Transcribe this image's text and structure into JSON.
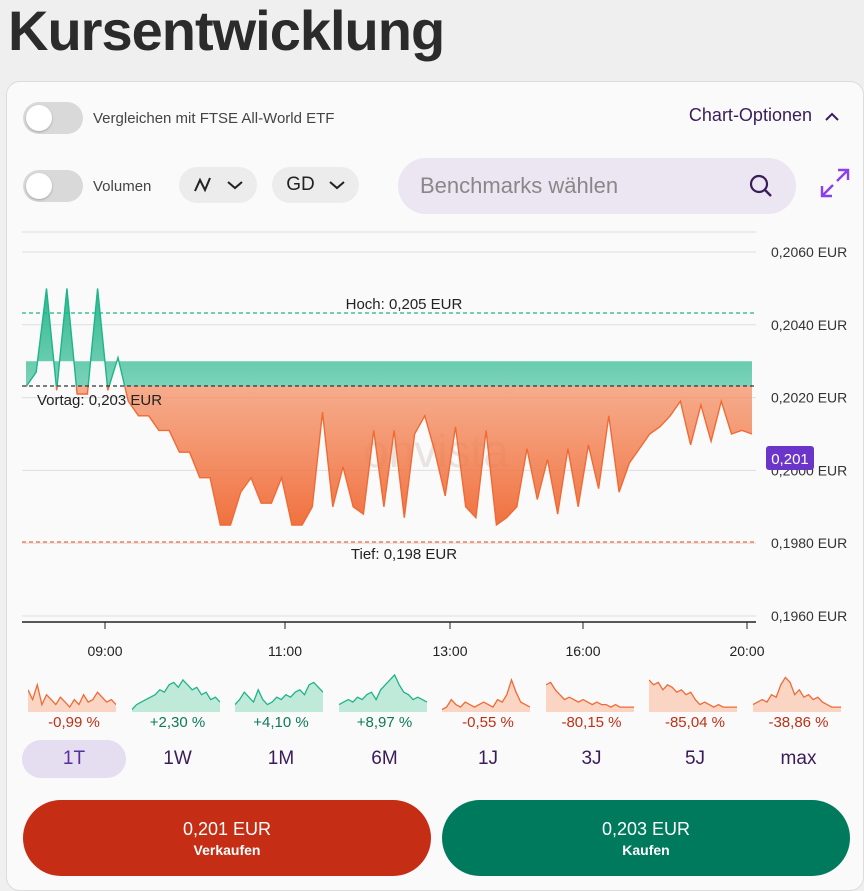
{
  "page": {
    "title": "Kursentwicklung"
  },
  "controls": {
    "compare_label": "Vergleichen mit FTSE All-World ETF",
    "chart_options_label": "Chart-Optionen",
    "volume_label": "Volumen",
    "average_label": "GD",
    "benchmark_placeholder": "Benchmarks wählen"
  },
  "chart": {
    "watermark": "onvista",
    "high_label": "Hoch: 0,205 EUR",
    "low_label": "Tief: 0,198 EUR",
    "prev_label": "Vortag: 0,203 EUR",
    "current_badge": "0,201",
    "y_ticks": [
      "0,2060 EUR",
      "0,2040 EUR",
      "0,2020 EUR",
      "0,2000 EUR",
      "0,1980 EUR",
      "0,1960 EUR"
    ],
    "x_ticks": [
      "09:00",
      "11:00",
      "13:00",
      "16:00",
      "20:00"
    ],
    "colors": {
      "up": "#1fb489",
      "down": "#f06a35",
      "badge": "#6b35c9"
    }
  },
  "chart_data": {
    "type": "area",
    "title": "",
    "xlabel": "",
    "ylabel": "",
    "ylim": [
      0.1957,
      0.2063
    ],
    "reference_lines": {
      "Vortag": 0.203,
      "Hoch": 0.205,
      "Tief": 0.198
    },
    "x_ticks": [
      "09:00",
      "11:00",
      "13:00",
      "16:00",
      "20:00"
    ],
    "y_ticks": [
      0.206,
      0.204,
      0.202,
      0.2,
      0.198,
      0.196
    ],
    "series": [
      {
        "values": [
          0.2023,
          0.2027,
          0.205,
          0.2022,
          0.205,
          0.2021,
          0.2021,
          0.205,
          0.2022,
          0.2031,
          0.2019,
          0.2015,
          0.2015,
          0.2011,
          0.2011,
          0.2005,
          0.2005,
          0.1998,
          0.1998,
          0.1985,
          0.1985,
          0.1994,
          0.1998,
          0.1991,
          0.1991,
          0.1998,
          0.1985,
          0.1985,
          0.199,
          0.2016,
          0.199,
          0.2001,
          0.199,
          0.1988,
          0.2011,
          0.199,
          0.2011,
          0.1987,
          0.201,
          0.2015,
          0.2005,
          0.1993,
          0.2012,
          0.199,
          0.1987,
          0.2011,
          0.1985,
          0.1987,
          0.199,
          0.2006,
          0.1992,
          0.2003,
          0.1988,
          0.2006,
          0.199,
          0.2007,
          0.1995,
          0.2015,
          0.1994,
          0.2002,
          0.2006,
          0.201,
          0.2012,
          0.2015,
          0.2019,
          0.2007,
          0.2018,
          0.2008,
          0.2019,
          0.201,
          0.2011,
          0.201
        ]
      }
    ]
  },
  "mini_charts": [
    {
      "period": "1T",
      "change": "-0,99 %"
    },
    {
      "period": "1W",
      "change": "+2,30 %"
    },
    {
      "period": "1M",
      "change": "+4,10 %"
    },
    {
      "period": "6M",
      "change": "+8,97 %"
    },
    {
      "period": "1J",
      "change": "-0,55 %"
    },
    {
      "period": "3J",
      "change": "-80,15 %"
    },
    {
      "period": "5J",
      "change": "-85,04 %"
    },
    {
      "period": "max",
      "change": "-38,86 %"
    }
  ],
  "periods": [
    "1T",
    "1W",
    "1M",
    "6M",
    "1J",
    "3J",
    "5J",
    "max"
  ],
  "trade": {
    "sell_price": "0,201 EUR",
    "sell_label": "Verkaufen",
    "buy_price": "0,203 EUR",
    "buy_label": "Kaufen"
  }
}
